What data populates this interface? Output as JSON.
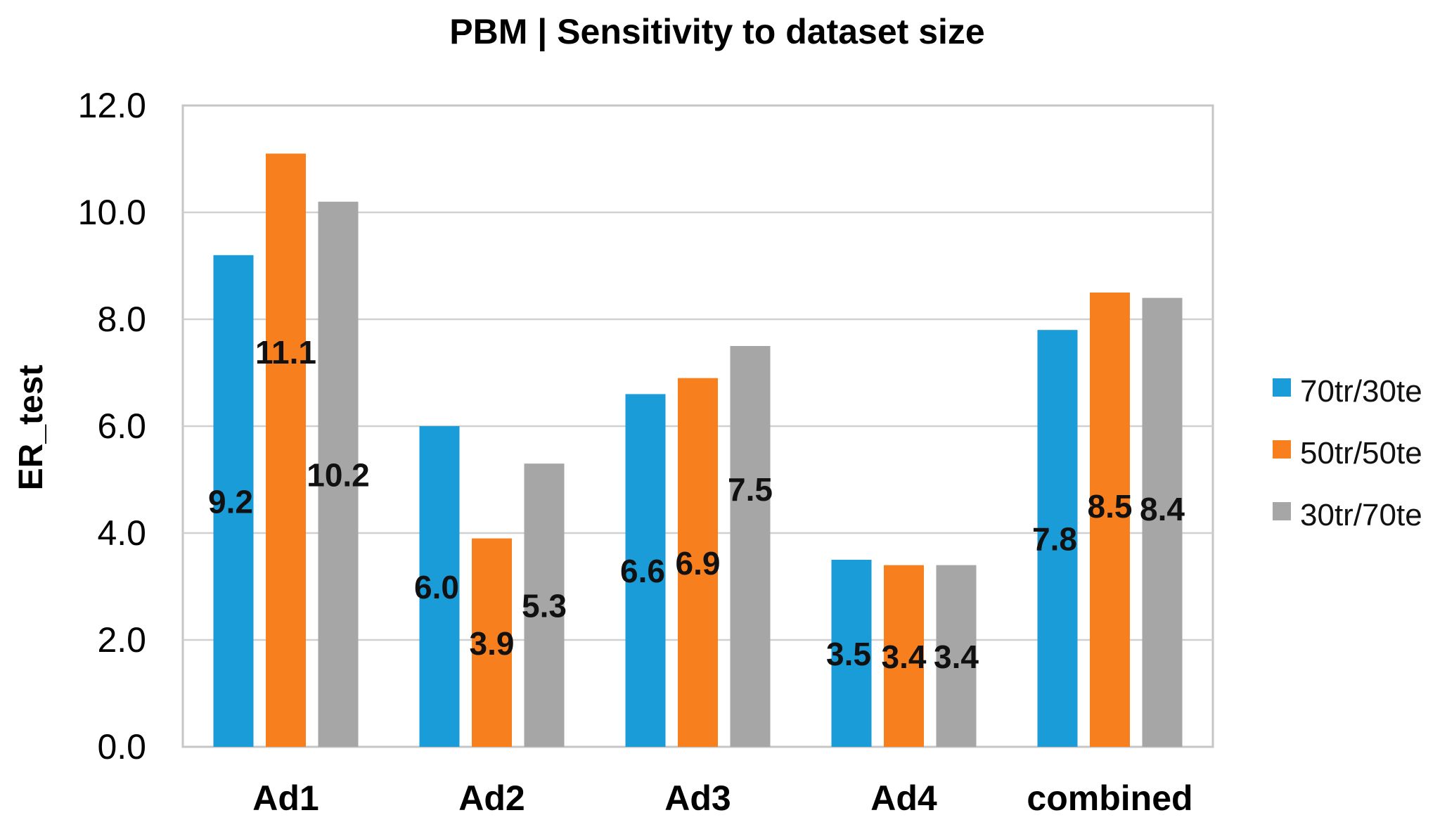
{
  "chart_data": {
    "type": "bar",
    "title": "PBM | Sensitivity to dataset size",
    "xlabel": "",
    "ylabel": "ER_test",
    "categories": [
      "Ad1",
      "Ad2",
      "Ad3",
      "Ad4",
      "combined"
    ],
    "series": [
      {
        "name": "70tr/30te",
        "color": "#1a9cd8",
        "values": [
          9.2,
          6.0,
          6.6,
          3.5,
          7.8
        ],
        "labels": [
          "9.2",
          "6.0",
          "6.6",
          "3.5",
          "7.8"
        ]
      },
      {
        "name": "50tr/50te",
        "color": "#f77f1e",
        "values": [
          11.1,
          3.9,
          6.9,
          3.4,
          8.5
        ],
        "labels": [
          "11.1",
          "3.9",
          "6.9",
          "3.4",
          "8.5"
        ]
      },
      {
        "name": "30tr/70te",
        "color": "#a6a6a6",
        "values": [
          10.2,
          5.3,
          7.5,
          3.4,
          8.4
        ],
        "labels": [
          "10.2",
          "5.3",
          "7.5",
          "3.4",
          "8.4"
        ]
      }
    ],
    "ylim": [
      0,
      12
    ],
    "yticks": [
      "0.0",
      "2.0",
      "4.0",
      "6.0",
      "8.0",
      "10.0",
      "12.0"
    ],
    "grid": true,
    "legend": "right"
  }
}
